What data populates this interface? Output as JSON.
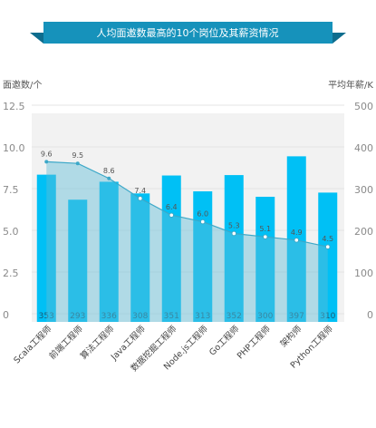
{
  "chart_data": {
    "type": "bar+line",
    "title": "人均面邀数最高的10个岗位及其薪资情况",
    "left_axis_label": "面邀数/个",
    "right_axis_label": "平均年薪/K",
    "categories": [
      "Scala工程师",
      "前端工程师",
      "算法工程师",
      "Java工程师",
      "数据挖掘工程师",
      "Node.js工程师",
      "Go工程师",
      "PHP工程师",
      "架构师",
      "Python工程师"
    ],
    "bar_series": {
      "axis": "right",
      "color": "#00c0f5",
      "values": [
        353,
        293,
        336,
        308,
        351,
        313,
        352,
        300,
        397,
        310
      ]
    },
    "line_series": {
      "axis": "left",
      "line_color": "#3ca8c8",
      "fill_color": "#5fbdd8",
      "values": [
        9.6,
        9.5,
        8.6,
        7.4,
        6.4,
        6.0,
        5.3,
        5.1,
        4.9,
        4.5
      ]
    },
    "left_axis": {
      "range": [
        0,
        12.5
      ],
      "ticks": [
        "0",
        "2.5",
        "5.0",
        "7.5",
        "10.0",
        "12.5"
      ]
    },
    "right_axis": {
      "range": [
        0,
        500
      ],
      "ticks": [
        "0",
        "100",
        "200",
        "300",
        "400",
        "500"
      ]
    },
    "banner_color": "#1692bb",
    "plot_bg": "#f2f2f2",
    "grid": true
  }
}
